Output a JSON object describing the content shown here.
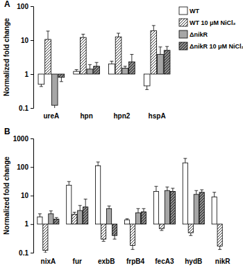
{
  "chart_data": [
    {
      "type": "bar",
      "title": "A",
      "y_label": "Normalized fold change",
      "categories": [
        "ureA",
        "hpn",
        "hpn2",
        "hspA"
      ],
      "log": "y",
      "ylim": [
        0.1,
        100
      ],
      "yticks": [
        0.1,
        1,
        10,
        100
      ],
      "legend": "upper right",
      "series": [
        {
          "name": "WT",
          "color": "#ffffff",
          "values": [
            0.5,
            1.2,
            2.0,
            0.45
          ],
          "errors": [
            0.07,
            0.15,
            0.4,
            0.1
          ]
        },
        {
          "name": "WT 10 μM NiCl₂",
          "color": "#ffffff",
          "values": [
            10.5,
            12,
            12.5,
            19
          ],
          "errors": [
            8,
            3,
            3.5,
            8
          ]
        },
        {
          "name": "ΔnikR",
          "color": "#a6a6a6",
          "values": [
            0.12,
            1.4,
            1.5,
            3.8
          ],
          "errors": [
            0.03,
            0.5,
            0.2,
            2.5
          ]
        },
        {
          "name": "ΔnikR 10 μM NiCl₂",
          "color": "#8c8c8c",
          "values": [
            0.8,
            1.7,
            2.3,
            5
          ],
          "errors": [
            0.2,
            0.5,
            1.5,
            1.5
          ]
        }
      ]
    },
    {
      "type": "bar",
      "title": "B",
      "y_label": "Normalized fold change",
      "categories": [
        "nixA",
        "fur",
        "exbB",
        "frpB4",
        "fecA3",
        "hydB",
        "nikR"
      ],
      "log": "y",
      "ylim": [
        0.1,
        1000
      ],
      "yticks": [
        0.1,
        1,
        10,
        100,
        1000
      ],
      "series": [
        {
          "name": "WT",
          "color": "#ffffff",
          "values": [
            1.8,
            23,
            110,
            1.4,
            14,
            140,
            9
          ],
          "errors": [
            0.5,
            8,
            40,
            0.15,
            7,
            60,
            4
          ]
        },
        {
          "name": "WT 10 μM NiCl₂",
          "color": "#ffffff",
          "values": [
            0.12,
            2.2,
            0.3,
            0.18,
            0.7,
            0.5,
            0.17
          ],
          "errors": [
            0.02,
            0.4,
            0.05,
            0.05,
            0.1,
            0.1,
            0.04
          ]
        },
        {
          "name": "ΔnikR",
          "color": "#a6a6a6",
          "values": [
            2.3,
            3,
            3.5,
            2.5,
            15,
            11,
            null
          ],
          "errors": [
            0.6,
            1.5,
            0.8,
            1,
            5,
            4,
            null
          ]
        },
        {
          "name": "ΔnikR 10 μM NiCl₂",
          "color": "#8c8c8c",
          "values": [
            1.5,
            4,
            0.4,
            2.7,
            14,
            13,
            null
          ],
          "errors": [
            0.2,
            3.5,
            0.1,
            0.8,
            4,
            3,
            null
          ]
        }
      ]
    }
  ]
}
